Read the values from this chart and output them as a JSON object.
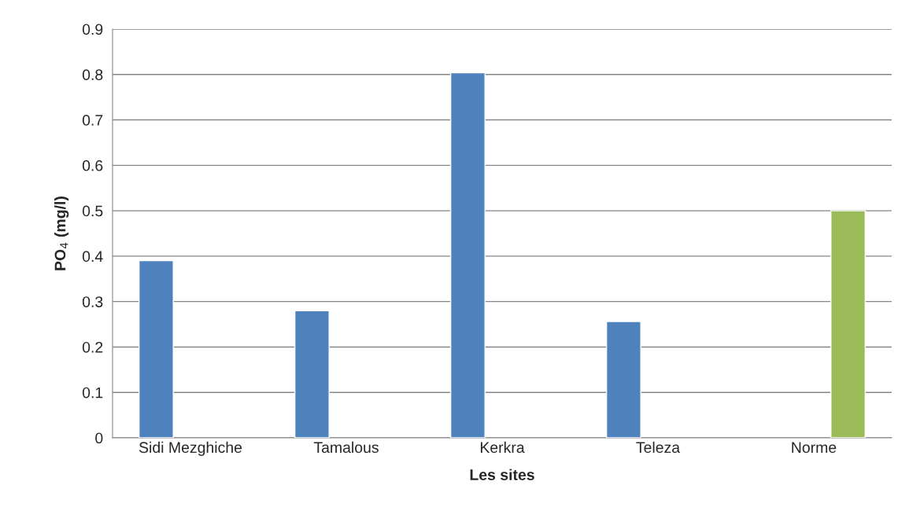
{
  "chart_data": {
    "type": "bar",
    "xlabel": "Les sites",
    "ylabel": "PO$_{4}$ (mg/l)",
    "categories": [
      "Sidi Mezghiche",
      "Tamalous",
      "Kerkra",
      "Teleza",
      "Norme"
    ],
    "series": [
      {
        "color": "#4f81bd",
        "values": [
          0.39,
          0.28,
          0.804,
          0.256,
          null
        ]
      },
      {
        "color": "#9bbb59",
        "values": [
          null,
          null,
          null,
          null,
          0.5
        ]
      }
    ],
    "ylim": [
      0,
      0.9
    ],
    "yticks": [
      0,
      0.1,
      0.2,
      0.3,
      0.4,
      0.5,
      0.6,
      0.7,
      0.8,
      0.9
    ],
    "grid": "y"
  }
}
